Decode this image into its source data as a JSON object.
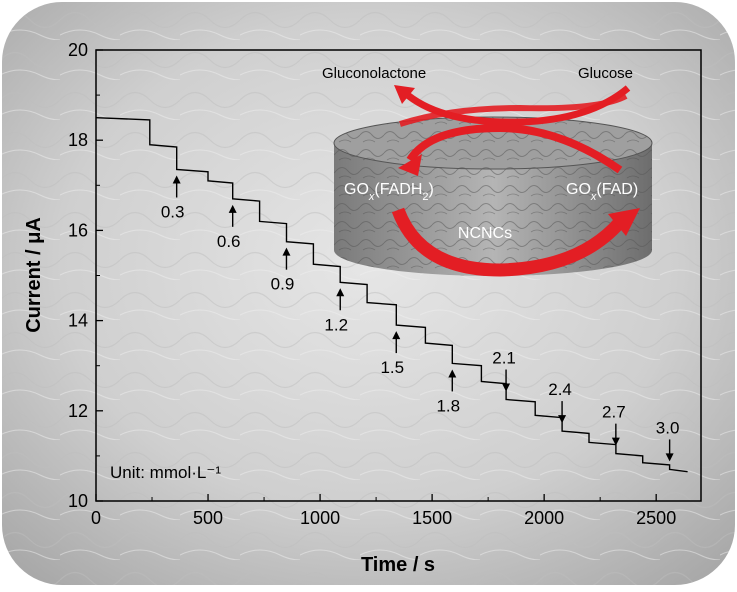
{
  "chart_data": {
    "type": "line",
    "xlabel": "Time / s",
    "ylabel": "Current / μA",
    "xlim": [
      0,
      2700
    ],
    "ylim": [
      10,
      20
    ],
    "xticks": [
      0,
      500,
      1000,
      1500,
      2000,
      2500
    ],
    "yticks": [
      10,
      12,
      14,
      16,
      18,
      20
    ],
    "unit_note": "Unit: mmol·L⁻¹",
    "series": [
      {
        "x": [
          0,
          240,
          240,
          360,
          360,
          500,
          500,
          610,
          610,
          730,
          730,
          850,
          850,
          970,
          970,
          1090,
          1090,
          1210,
          1210,
          1340,
          1340,
          1470,
          1470,
          1590,
          1590,
          1720,
          1720,
          1830,
          1830,
          1960,
          1960,
          2080,
          2080,
          2200,
          2200,
          2320,
          2320,
          2440,
          2440,
          2560,
          2560,
          2640
        ],
        "y": [
          18.5,
          18.45,
          17.9,
          17.85,
          17.35,
          17.3,
          17.1,
          17.05,
          16.7,
          16.65,
          16.2,
          16.15,
          15.75,
          15.7,
          15.25,
          15.2,
          14.85,
          14.8,
          14.4,
          14.35,
          13.9,
          13.85,
          13.5,
          13.45,
          13.05,
          13.0,
          12.65,
          12.6,
          12.25,
          12.2,
          11.9,
          11.85,
          11.55,
          11.5,
          11.3,
          11.25,
          11.05,
          11.0,
          10.85,
          10.8,
          10.7,
          10.65
        ]
      }
    ],
    "annotations": [
      {
        "label": "0.3",
        "x": 360,
        "direction": "up"
      },
      {
        "label": "0.6",
        "x": 610,
        "direction": "up"
      },
      {
        "label": "0.9",
        "x": 850,
        "direction": "up"
      },
      {
        "label": "1.2",
        "x": 1090,
        "direction": "up"
      },
      {
        "label": "1.5",
        "x": 1340,
        "direction": "up"
      },
      {
        "label": "1.8",
        "x": 1590,
        "direction": "up"
      },
      {
        "label": "2.1",
        "x": 1830,
        "direction": "down"
      },
      {
        "label": "2.4",
        "x": 2080,
        "direction": "down"
      },
      {
        "label": "2.7",
        "x": 2320,
        "direction": "down"
      },
      {
        "label": "3.0",
        "x": 2560,
        "direction": "down"
      }
    ],
    "inset": {
      "labels": {
        "gluconolactone": "Gluconolactone",
        "glucose": "Glucose",
        "gox_fadh2": "GOx(FADH2)",
        "gox_fad": "GOx(FAD)",
        "ncncs": "NCNCs"
      },
      "arrow_color": "#e31e24"
    }
  }
}
